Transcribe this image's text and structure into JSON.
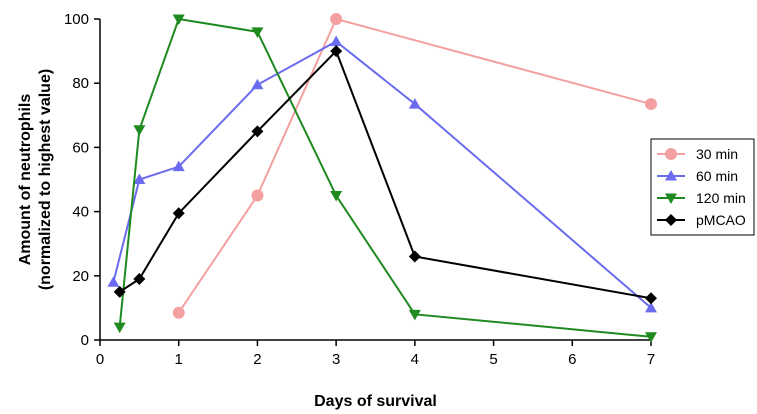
{
  "chart_data": {
    "type": "line",
    "xlabel": "Days of survival",
    "ylabel_lines": [
      "Amount of neutrophils",
      "(normalized to highest value)"
    ],
    "xlim": [
      0,
      7
    ],
    "ylim": [
      0,
      100
    ],
    "xticks": [
      0,
      1,
      2,
      3,
      4,
      5,
      6,
      7
    ],
    "yticks": [
      0,
      20,
      40,
      60,
      80,
      100
    ],
    "grid": false,
    "legend_position": "right",
    "series": [
      {
        "name": "30 min",
        "color": "#f4a0a0",
        "marker": "circle",
        "x": [
          1,
          2,
          3,
          7
        ],
        "y": [
          8.5,
          45,
          100,
          73.5
        ]
      },
      {
        "name": "60 min",
        "color": "#6b6bef",
        "marker": "triangle-up",
        "x": [
          0.17,
          0.5,
          1,
          2,
          3,
          4,
          7
        ],
        "y": [
          18,
          50,
          54,
          79.5,
          93,
          73.5,
          10
        ]
      },
      {
        "name": "120 min",
        "color": "#1f8a1f",
        "marker": "triangle-down",
        "x": [
          0.25,
          0.5,
          1,
          2,
          3,
          4,
          7
        ],
        "y": [
          4,
          65.5,
          100,
          96,
          45,
          8,
          1
        ]
      },
      {
        "name": "pMCAO",
        "color": "#000000",
        "marker": "diamond",
        "x": [
          0.25,
          0.5,
          1,
          2,
          3,
          4,
          7
        ],
        "y": [
          15,
          19,
          39.5,
          65,
          90,
          26,
          13
        ]
      }
    ]
  }
}
